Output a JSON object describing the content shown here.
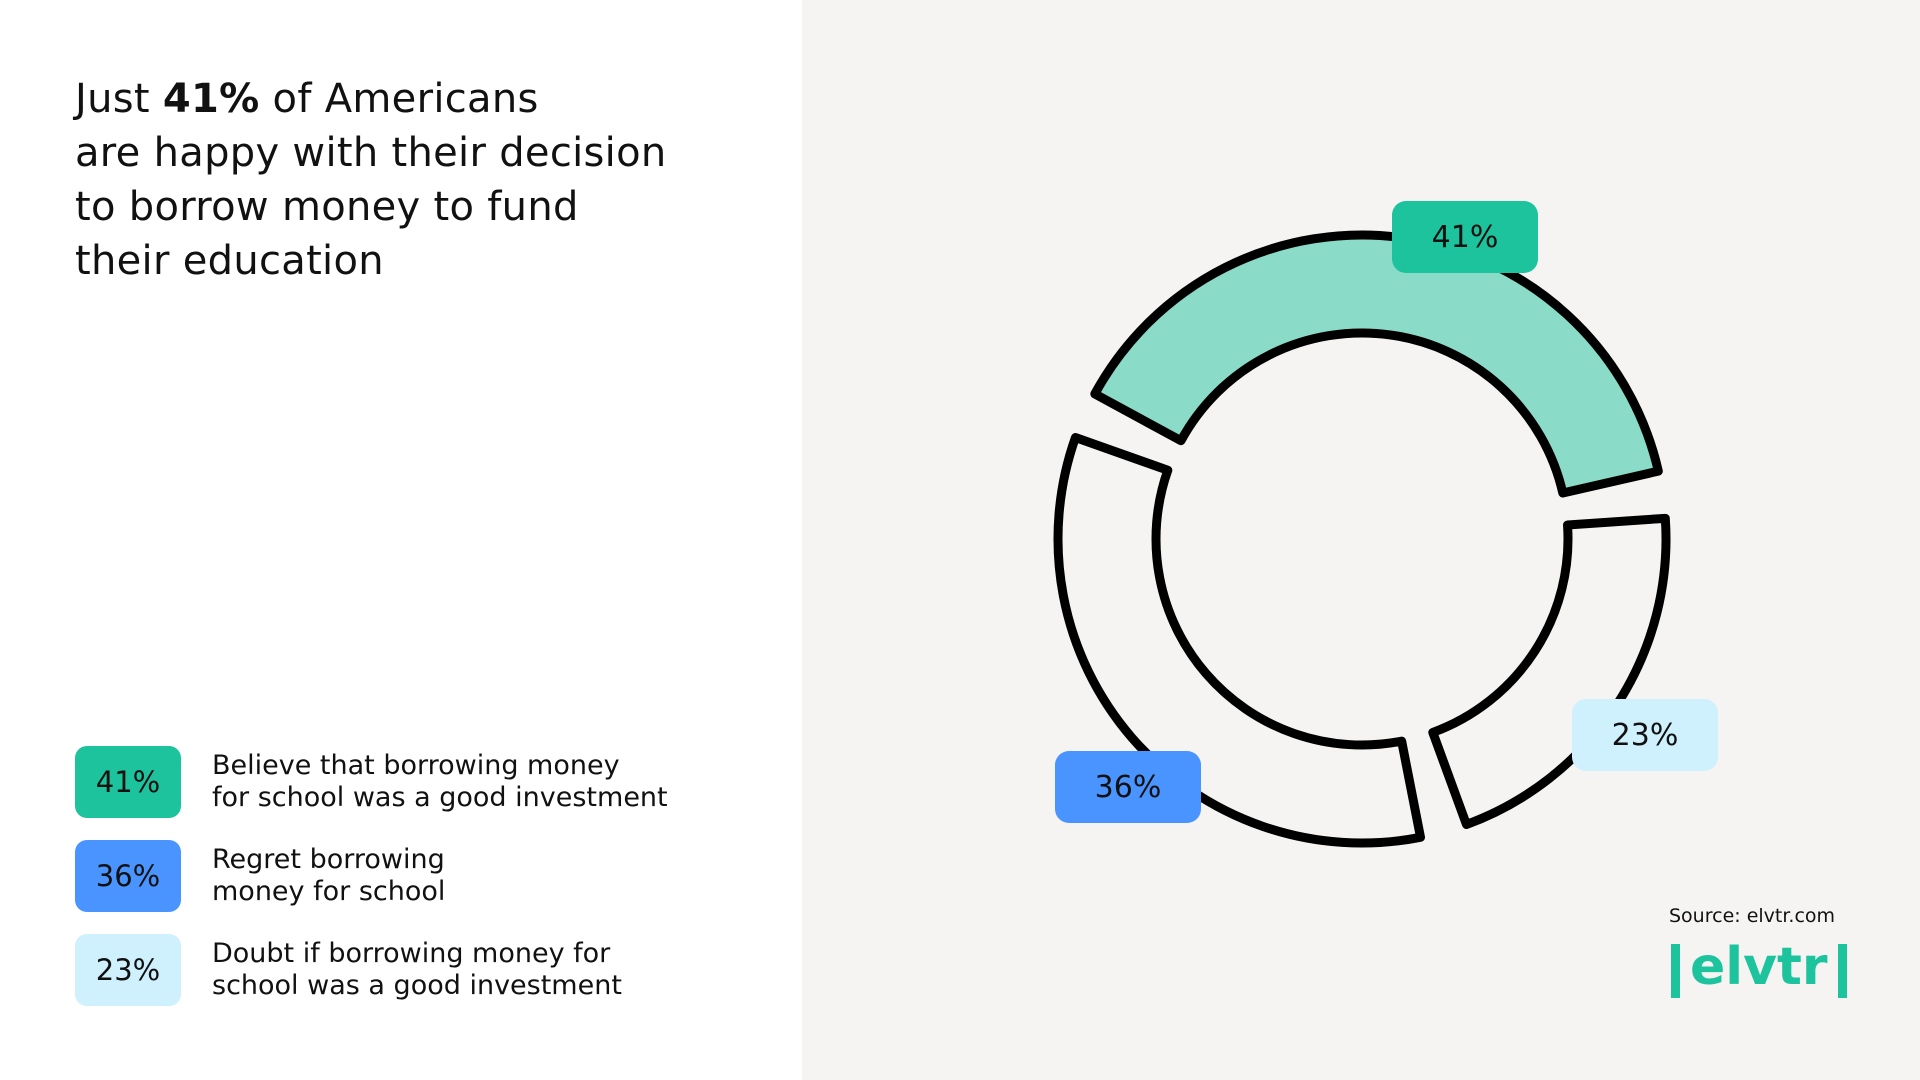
{
  "title": {
    "line1_before": "Just ",
    "line1_bold": "41%",
    "line1_after": " of Americans",
    "line2": "are happy with their decision",
    "line3": "to borrow money to fund",
    "line4": "their education"
  },
  "legend": [
    {
      "value_label": "41%",
      "lines": [
        "Believe that borrowing money",
        "for school was a good investment"
      ],
      "color": "#1dc39c"
    },
    {
      "value_label": "36%",
      "lines": [
        "Regret borrowing",
        "money for school"
      ],
      "color": "#4a94ff"
    },
    {
      "value_label": "23%",
      "lines": [
        "Doubt if borrowing money for",
        "school was a good investment"
      ],
      "color": "#cff0fd"
    }
  ],
  "chart_data": {
    "type": "pie",
    "variant": "donut",
    "categories": [
      "Believe that borrowing money for school was a good investment",
      "Doubt if borrowing money for school was a good investment",
      "Regret borrowing money for school"
    ],
    "values": [
      41,
      23,
      36
    ],
    "labels": [
      "41%",
      "23%",
      "36%"
    ],
    "segment_fills": [
      "#8adcc8",
      "#f5f4f2",
      "#f5f4f2"
    ],
    "label_colors": [
      "#1dc39c",
      "#cff0fd",
      "#4a94ff"
    ],
    "outline_color": "#000000"
  },
  "source": "Source: elvtr.com",
  "logo": {
    "text": "elvtr",
    "color": "#1dc39c"
  }
}
